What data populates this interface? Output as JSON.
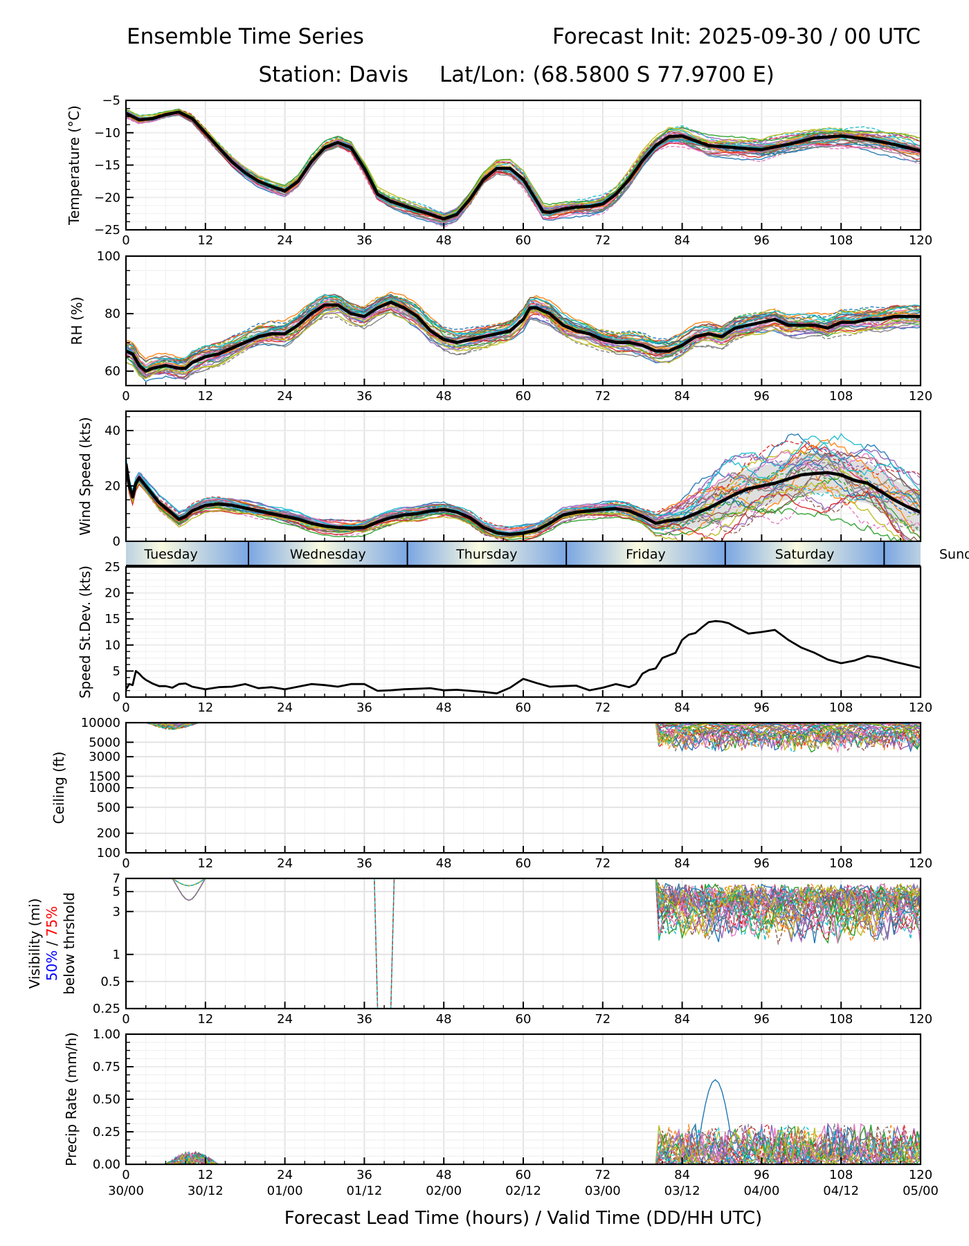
{
  "header": {
    "title_left": "Ensemble Time Series",
    "title_right": "Forecast Init: 2025-09-30 / 00 UTC",
    "subtitle_station": "Station: Davis",
    "subtitle_latlon": "Lat/Lon: (68.5800 S 77.9700 E)"
  },
  "xaxis": {
    "label": "Forecast Lead Time (hours) / Valid Time (DD/HH UTC)",
    "range": [
      0,
      120
    ],
    "ticks": [
      0,
      12,
      24,
      36,
      48,
      60,
      72,
      84,
      96,
      108,
      120
    ],
    "tick_labels": [
      "0",
      "12",
      "24",
      "36",
      "48",
      "60",
      "72",
      "84",
      "96",
      "108",
      "120"
    ],
    "valid_time_labels": [
      "30/00",
      "30/12",
      "01/00",
      "01/12",
      "02/00",
      "02/12",
      "03/00",
      "03/12",
      "04/00",
      "04/12",
      "05/00"
    ]
  },
  "day_bar": {
    "days": [
      {
        "label": "Tuesday",
        "start": 0,
        "end": 18.5
      },
      {
        "label": "Wednesday",
        "start": 18.5,
        "end": 42.5
      },
      {
        "label": "Thursday",
        "start": 42.5,
        "end": 66.5
      },
      {
        "label": "Friday",
        "start": 66.5,
        "end": 90.5
      },
      {
        "label": "Saturday",
        "start": 90.5,
        "end": 114.5
      },
      {
        "label": "Sunday",
        "start": 114.5,
        "end": 138.5
      }
    ],
    "colors": {
      "night": "#7aa6e3",
      "day": "#fafae0"
    }
  },
  "chart_data": [
    {
      "id": "temperature",
      "type": "line",
      "ylabel": "Temperature (°C)",
      "ylim": [
        -25,
        -5
      ],
      "yticks": [
        -25,
        -20,
        -15,
        -10,
        -5
      ],
      "ytick_labels": [
        "−25",
        "−20",
        "−15",
        "−10",
        "−5"
      ],
      "grid": true,
      "mean": {
        "name": "Ensemble mean",
        "x": [
          0,
          2,
          4,
          6,
          8,
          10,
          12,
          14,
          16,
          18,
          20,
          22,
          24,
          26,
          28,
          30,
          32,
          34,
          36,
          38,
          40,
          42,
          44,
          46,
          48,
          50,
          52,
          54,
          56,
          58,
          60,
          62,
          63,
          64,
          66,
          68,
          70,
          72,
          74,
          76,
          78,
          80,
          82,
          84,
          88,
          92,
          96,
          100,
          104,
          108,
          112,
          116,
          120
        ],
        "y": [
          -7,
          -8,
          -7.8,
          -7.2,
          -6.8,
          -7.8,
          -10,
          -12.3,
          -14.5,
          -16.2,
          -17.5,
          -18.3,
          -19,
          -17.5,
          -14.5,
          -12.3,
          -11.5,
          -12.3,
          -15.5,
          -19.5,
          -20.6,
          -21.3,
          -22,
          -22.6,
          -23.3,
          -22.6,
          -20.2,
          -17.2,
          -15.5,
          -15.5,
          -17.2,
          -20.5,
          -22.2,
          -22.3,
          -21.8,
          -21.5,
          -21.4,
          -21.0,
          -19.5,
          -17.2,
          -14.3,
          -12,
          -10.6,
          -10.5,
          -12,
          -12.3,
          -12.6,
          -11.8,
          -10.8,
          -10.5,
          -11,
          -11.8,
          -12.8
        ]
      },
      "spread": {
        "lower_offset": [
          0.6,
          1.2,
          1.8,
          2.5
        ],
        "upper_offset": [
          0.6,
          1.0,
          1.5,
          2.0
        ],
        "segments_x": [
          0,
          40,
          75,
          120
        ]
      },
      "members_count": 30
    },
    {
      "id": "rh",
      "type": "line",
      "ylabel": "RH (%)",
      "ylim": [
        55,
        100
      ],
      "yticks": [
        60,
        80,
        100
      ],
      "ytick_labels": [
        "60",
        "80",
        "100"
      ],
      "grid": true,
      "mean": {
        "name": "Ensemble mean",
        "x": [
          0,
          1,
          2,
          3,
          4,
          6,
          8,
          9,
          10,
          12,
          14,
          16,
          18,
          20,
          22,
          24,
          26,
          28,
          30,
          32,
          34,
          36,
          38,
          40,
          42,
          44,
          46,
          48,
          50,
          52,
          54,
          56,
          58,
          60,
          61,
          62,
          64,
          66,
          68,
          70,
          72,
          74,
          76,
          78,
          80,
          82,
          84,
          86,
          88,
          90,
          92,
          94,
          96,
          98,
          100,
          102,
          104,
          106,
          108,
          110,
          112,
          114,
          116,
          118,
          120
        ],
        "y": [
          67,
          66,
          62,
          60,
          61,
          62,
          61,
          61,
          63,
          65,
          66,
          68,
          70,
          72,
          73,
          73,
          76,
          80,
          83,
          83,
          80,
          79,
          82,
          84,
          82,
          79,
          74,
          71,
          70,
          71,
          72,
          73,
          74,
          78,
          82,
          82,
          80,
          76,
          74,
          73,
          71,
          70,
          70,
          69,
          67,
          67,
          69,
          72,
          73,
          72,
          75,
          76,
          77,
          78,
          76,
          76,
          76,
          75,
          77,
          77,
          78,
          78,
          79,
          79,
          79
        ]
      },
      "members_count": 30
    },
    {
      "id": "wind_speed",
      "type": "line",
      "ylabel": "Wind Speed (kts)",
      "ylim": [
        0,
        47
      ],
      "yticks": [
        0,
        20,
        40
      ],
      "ytick_labels": [
        "0",
        "20",
        "40"
      ],
      "grid": true,
      "mean": {
        "name": "Ensemble mean",
        "x": [
          0,
          0.5,
          1,
          1.5,
          2,
          3,
          4,
          5,
          6,
          7,
          8,
          9,
          10,
          12,
          14,
          16,
          18,
          20,
          22,
          24,
          26,
          28,
          30,
          32,
          34,
          36,
          38,
          40,
          42,
          44,
          46,
          48,
          50,
          52,
          54,
          56,
          58,
          60,
          62,
          64,
          66,
          68,
          70,
          72,
          74,
          76,
          78,
          80,
          82,
          84,
          86,
          88,
          90,
          92,
          94,
          96,
          98,
          100,
          102,
          104,
          106,
          108,
          110,
          112,
          114,
          116,
          118,
          120
        ],
        "y": [
          28,
          20,
          16,
          21,
          23,
          20,
          17,
          14,
          12,
          10,
          8,
          9,
          11,
          13,
          13.5,
          13,
          12,
          11,
          10,
          9,
          8,
          6.5,
          5.5,
          5,
          4.8,
          5,
          7,
          8.5,
          9.5,
          10,
          11,
          11.5,
          10.5,
          8.5,
          5,
          3,
          2.5,
          3,
          4,
          6.5,
          9.5,
          10.5,
          11,
          11.5,
          11.8,
          11,
          9,
          6.5,
          7.5,
          8,
          10,
          12,
          14.5,
          17,
          19,
          20,
          21,
          22.5,
          24,
          24.5,
          24.8,
          24,
          22,
          21,
          18,
          15,
          12.5,
          10.5
        ]
      },
      "members_count": 30
    },
    {
      "id": "speed_stdev",
      "type": "line",
      "ylabel": "Speed St.Dev. (kts)",
      "ylim": [
        0,
        25
      ],
      "yticks": [
        0,
        5,
        10,
        15,
        20,
        25
      ],
      "ytick_labels": [
        "0",
        "5",
        "10",
        "15",
        "20",
        "25"
      ],
      "grid": true,
      "series": [
        {
          "name": "Wind speed ensemble standard deviation",
          "x": [
            0,
            0.5,
            1,
            1.5,
            2,
            2.5,
            3,
            4,
            5,
            6,
            7,
            8,
            9,
            10,
            12,
            14,
            16,
            18,
            20,
            22,
            24,
            26,
            28,
            30,
            32,
            34,
            36,
            38,
            40,
            42,
            44,
            46,
            48,
            50,
            52,
            54,
            56,
            58,
            60,
            62,
            64,
            66,
            68,
            70,
            72,
            74,
            76,
            77,
            78,
            79,
            80,
            81,
            82,
            83,
            84,
            85,
            86,
            87,
            88,
            89,
            90,
            91,
            92,
            94,
            96,
            98,
            100,
            102,
            104,
            106,
            108,
            110,
            112,
            114,
            116,
            118,
            120
          ],
          "y": [
            1.5,
            2.5,
            2.3,
            5,
            4.5,
            3.8,
            3.3,
            2.6,
            2.1,
            2.1,
            1.8,
            2.5,
            2.6,
            2,
            1.5,
            1.9,
            2.0,
            2.5,
            1.7,
            1.9,
            1.5,
            2.0,
            2.5,
            2.3,
            2.0,
            2.5,
            2.5,
            1.2,
            1.3,
            1.5,
            1.6,
            1.7,
            1.3,
            1.4,
            1.2,
            1.0,
            0.7,
            1.8,
            3.5,
            2.7,
            2.0,
            2.1,
            2.2,
            1.3,
            1.8,
            2.5,
            1.9,
            2.5,
            4.5,
            5.2,
            5.5,
            7.5,
            8,
            8.5,
            11,
            12,
            12.3,
            13.4,
            14.4,
            14.6,
            14.5,
            14.2,
            13.5,
            12.2,
            12.5,
            12.9,
            11,
            9.5,
            8.5,
            7.2,
            6.5,
            7,
            7.9,
            7.5,
            6.8,
            6.2,
            5.6
          ]
        }
      ]
    },
    {
      "id": "ceiling",
      "type": "line",
      "yscale": "log",
      "ylabel": "Ceiling (ft)",
      "ylim": [
        100,
        10000
      ],
      "yticks": [
        100,
        200,
        500,
        1000,
        1500,
        3000,
        5000,
        10000
      ],
      "ytick_labels": [
        "100",
        "200",
        "500",
        "1000",
        "1500",
        "3000",
        "5000",
        "10000"
      ],
      "grid": true,
      "notes": "Members mostly at/above 10000 ft; dips to ~8000 ft near hours 3-9 and 3000-9000 ft after hour 80",
      "members_count": 30
    },
    {
      "id": "visibility",
      "type": "line",
      "yscale": "log",
      "ylabel_line1": "Visibility (mi)",
      "ylabel_line2_blue": "50%",
      "ylabel_line2_sep": " / ",
      "ylabel_line2_red": "75%",
      "ylabel_line3": "below thrshold",
      "label_colors": {
        "blue": "#0000ff",
        "red": "#ff0000"
      },
      "ylim": [
        0.25,
        7
      ],
      "yticks": [
        0.25,
        0.5,
        1,
        3,
        5,
        7
      ],
      "ytick_labels": [
        "0.25",
        "0.5",
        "1",
        "3",
        "5",
        "7"
      ],
      "grid": true,
      "notes": "Members near 7 mi; dips to ~3.5 mi near hour 9, sharp drops near hour 38-40, widespread 0.7-5 mi after hour 80",
      "members_count": 30
    },
    {
      "id": "precip_rate",
      "type": "line",
      "ylabel": "Precip Rate (mm/h)",
      "ylim": [
        0,
        1.0
      ],
      "yticks": [
        0,
        0.25,
        0.5,
        0.75,
        1.0
      ],
      "ytick_labels": [
        "0.00",
        "0.25",
        "0.50",
        "0.75",
        "1.00"
      ],
      "grid": true,
      "notes": "Light precip ~0.1 mm/h near hours 6-12; peaks up to ~0.65 mm/h near hour 89; 0.1-0.35 mm/h hours 80-120",
      "members_count": 30
    }
  ]
}
